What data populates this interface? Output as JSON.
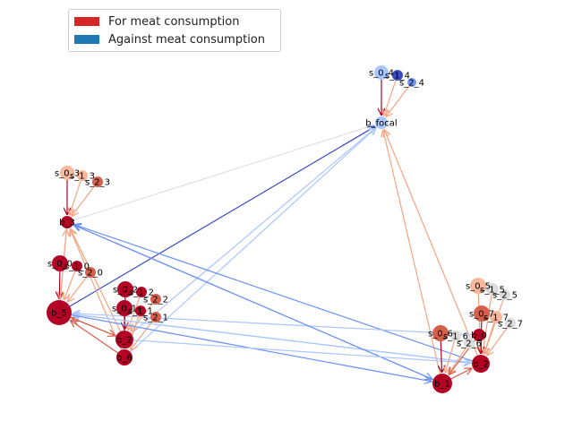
{
  "legend": {
    "items": [
      {
        "label": "For meat consumption",
        "color": "#d62728"
      },
      {
        "label": "Against meat consumption",
        "color": "#1f77b4"
      }
    ]
  },
  "palette": {
    "dark_red": "#b40426",
    "red": "#d6604d",
    "salmon": "#f4a582",
    "light_salmon": "#f7b89c",
    "pale": "#dddcdc",
    "light_blue": "#aac7fd",
    "blue": "#6f92f3",
    "dark_blue": "#3b4cc0"
  },
  "nodes": [
    {
      "id": "s_0_4",
      "label": "s_0_4",
      "color": "light_blue"
    },
    {
      "id": "s_1_4",
      "label": "s_1_4",
      "color": "dark_blue"
    },
    {
      "id": "s_2_4",
      "label": "s_2_4",
      "color": "blue"
    },
    {
      "id": "b_focal",
      "label": "b_focal",
      "color": "light_blue"
    },
    {
      "id": "s_0_3",
      "label": "s_0_3",
      "color": "light_salmon"
    },
    {
      "id": "s_1_3",
      "label": "s_1_3",
      "color": "light_salmon"
    },
    {
      "id": "s_2_3",
      "label": "s_2_3",
      "color": "red"
    },
    {
      "id": "b_3",
      "label": "b_3",
      "color": "dark_red"
    },
    {
      "id": "s_0_0",
      "label": "s_0_0",
      "color": "dark_red"
    },
    {
      "id": "s_1_0",
      "label": "s_1_0",
      "color": "dark_red"
    },
    {
      "id": "s_2_0",
      "label": "s_2_0",
      "color": "red"
    },
    {
      "id": "b_5",
      "label": "b_5",
      "color": "dark_red"
    },
    {
      "id": "s_0_2",
      "label": "s_0_2",
      "color": "dark_red"
    },
    {
      "id": "s_1_2",
      "label": "s_1_2",
      "color": "dark_red"
    },
    {
      "id": "s_2_2",
      "label": "s_2_2",
      "color": "red"
    },
    {
      "id": "s_0_1",
      "label": "s_0_1",
      "color": "dark_red"
    },
    {
      "id": "s_1_1",
      "label": "s_1_1",
      "color": "dark_red"
    },
    {
      "id": "s_2_1",
      "label": "s_2_1",
      "color": "red"
    },
    {
      "id": "b_2",
      "label": "b_2",
      "color": "dark_red"
    },
    {
      "id": "b_6",
      "label": "b_6",
      "color": "dark_red"
    },
    {
      "id": "s_0_5",
      "label": "s_0_5",
      "color": "light_salmon"
    },
    {
      "id": "s_1_5",
      "label": "s_1_5",
      "color": "pale"
    },
    {
      "id": "s_2_5",
      "label": "s_2_5",
      "color": "pale"
    },
    {
      "id": "s_0_7",
      "label": "s_0_7",
      "color": "red"
    },
    {
      "id": "s_1_7",
      "label": "s_1_7",
      "color": "light_salmon"
    },
    {
      "id": "s_2_7",
      "label": "s_2_7",
      "color": "pale"
    },
    {
      "id": "s_0_6",
      "label": "s_0_6",
      "color": "red"
    },
    {
      "id": "s_1_6",
      "label": "s_1_6",
      "color": "pale"
    },
    {
      "id": "b_0",
      "label": "b_0",
      "color": "dark_red"
    },
    {
      "id": "s_2_6",
      "label": "s_2_6",
      "color": "pale"
    },
    {
      "id": "b_2b",
      "label": "b_2",
      "color": "dark_red"
    },
    {
      "id": "b_1",
      "label": "b_1",
      "color": "dark_red"
    }
  ],
  "edges": [
    {
      "from": "s_0_4",
      "to": "b_focal",
      "color": "dark_red"
    },
    {
      "from": "s_1_4",
      "to": "b_focal",
      "color": "salmon"
    },
    {
      "from": "s_2_4",
      "to": "b_focal",
      "color": "salmon"
    },
    {
      "from": "b_3",
      "to": "b_focal",
      "color": "pale"
    },
    {
      "from": "b_5",
      "to": "b_focal",
      "color": "dark_blue"
    },
    {
      "from": "b_2",
      "to": "b_focal",
      "color": "light_blue"
    },
    {
      "from": "b_6",
      "to": "b_focal",
      "color": "light_blue"
    },
    {
      "from": "b_1",
      "to": "b_focal",
      "color": "salmon"
    },
    {
      "from": "b_2b",
      "to": "b_focal",
      "color": "salmon"
    },
    {
      "from": "s_0_3",
      "to": "b_3",
      "color": "dark_red"
    },
    {
      "from": "s_1_3",
      "to": "b_3",
      "color": "salmon"
    },
    {
      "from": "s_2_3",
      "to": "b_3",
      "color": "salmon"
    },
    {
      "from": "b_5",
      "to": "b_3",
      "color": "salmon"
    },
    {
      "from": "b_2",
      "to": "b_3",
      "color": "salmon"
    },
    {
      "from": "b_6",
      "to": "b_3",
      "color": "salmon"
    },
    {
      "from": "b_1",
      "to": "b_3",
      "color": "blue"
    },
    {
      "from": "b_2b",
      "to": "b_3",
      "color": "blue"
    },
    {
      "from": "s_0_0",
      "to": "b_5",
      "color": "dark_red"
    },
    {
      "from": "s_1_0",
      "to": "b_5",
      "color": "salmon"
    },
    {
      "from": "s_2_0",
      "to": "b_5",
      "color": "salmon"
    },
    {
      "from": "b_3",
      "to": "b_5",
      "color": "salmon"
    },
    {
      "from": "b_2",
      "to": "b_5",
      "color": "red"
    },
    {
      "from": "b_6",
      "to": "b_5",
      "color": "red"
    },
    {
      "from": "b_1",
      "to": "b_5",
      "color": "light_blue"
    },
    {
      "from": "b_2b",
      "to": "b_5",
      "color": "light_blue"
    },
    {
      "from": "b_0",
      "to": "b_5",
      "color": "light_blue"
    },
    {
      "from": "s_0_2",
      "to": "b_2",
      "color": "dark_red"
    },
    {
      "from": "s_1_2",
      "to": "b_2",
      "color": "salmon"
    },
    {
      "from": "s_2_2",
      "to": "b_2",
      "color": "salmon"
    },
    {
      "from": "s_0_1",
      "to": "b_6",
      "color": "dark_red"
    },
    {
      "from": "s_1_1",
      "to": "b_6",
      "color": "salmon"
    },
    {
      "from": "s_2_1",
      "to": "b_6",
      "color": "salmon"
    },
    {
      "from": "b_5",
      "to": "b_2",
      "color": "red"
    },
    {
      "from": "b_5",
      "to": "b_1",
      "color": "blue"
    },
    {
      "from": "b_5",
      "to": "b_2b",
      "color": "light_blue"
    },
    {
      "from": "b_3",
      "to": "b_1",
      "color": "blue"
    },
    {
      "from": "b_2",
      "to": "b_2b",
      "color": "light_blue"
    },
    {
      "from": "s_0_5",
      "to": "b_2b",
      "color": "salmon"
    },
    {
      "from": "s_1_5",
      "to": "b_2b",
      "color": "salmon"
    },
    {
      "from": "s_2_5",
      "to": "b_2b",
      "color": "salmon"
    },
    {
      "from": "s_0_7",
      "to": "b_2b",
      "color": "dark_red"
    },
    {
      "from": "s_1_7",
      "to": "b_2b",
      "color": "salmon"
    },
    {
      "from": "s_2_7",
      "to": "b_2b",
      "color": "salmon"
    },
    {
      "from": "s_0_6",
      "to": "b_1",
      "color": "dark_red"
    },
    {
      "from": "s_1_6",
      "to": "b_1",
      "color": "salmon"
    },
    {
      "from": "s_2_6",
      "to": "b_1",
      "color": "salmon"
    },
    {
      "from": "b_0",
      "to": "b_1",
      "color": "red"
    },
    {
      "from": "b_1",
      "to": "b_2b",
      "color": "red"
    }
  ]
}
